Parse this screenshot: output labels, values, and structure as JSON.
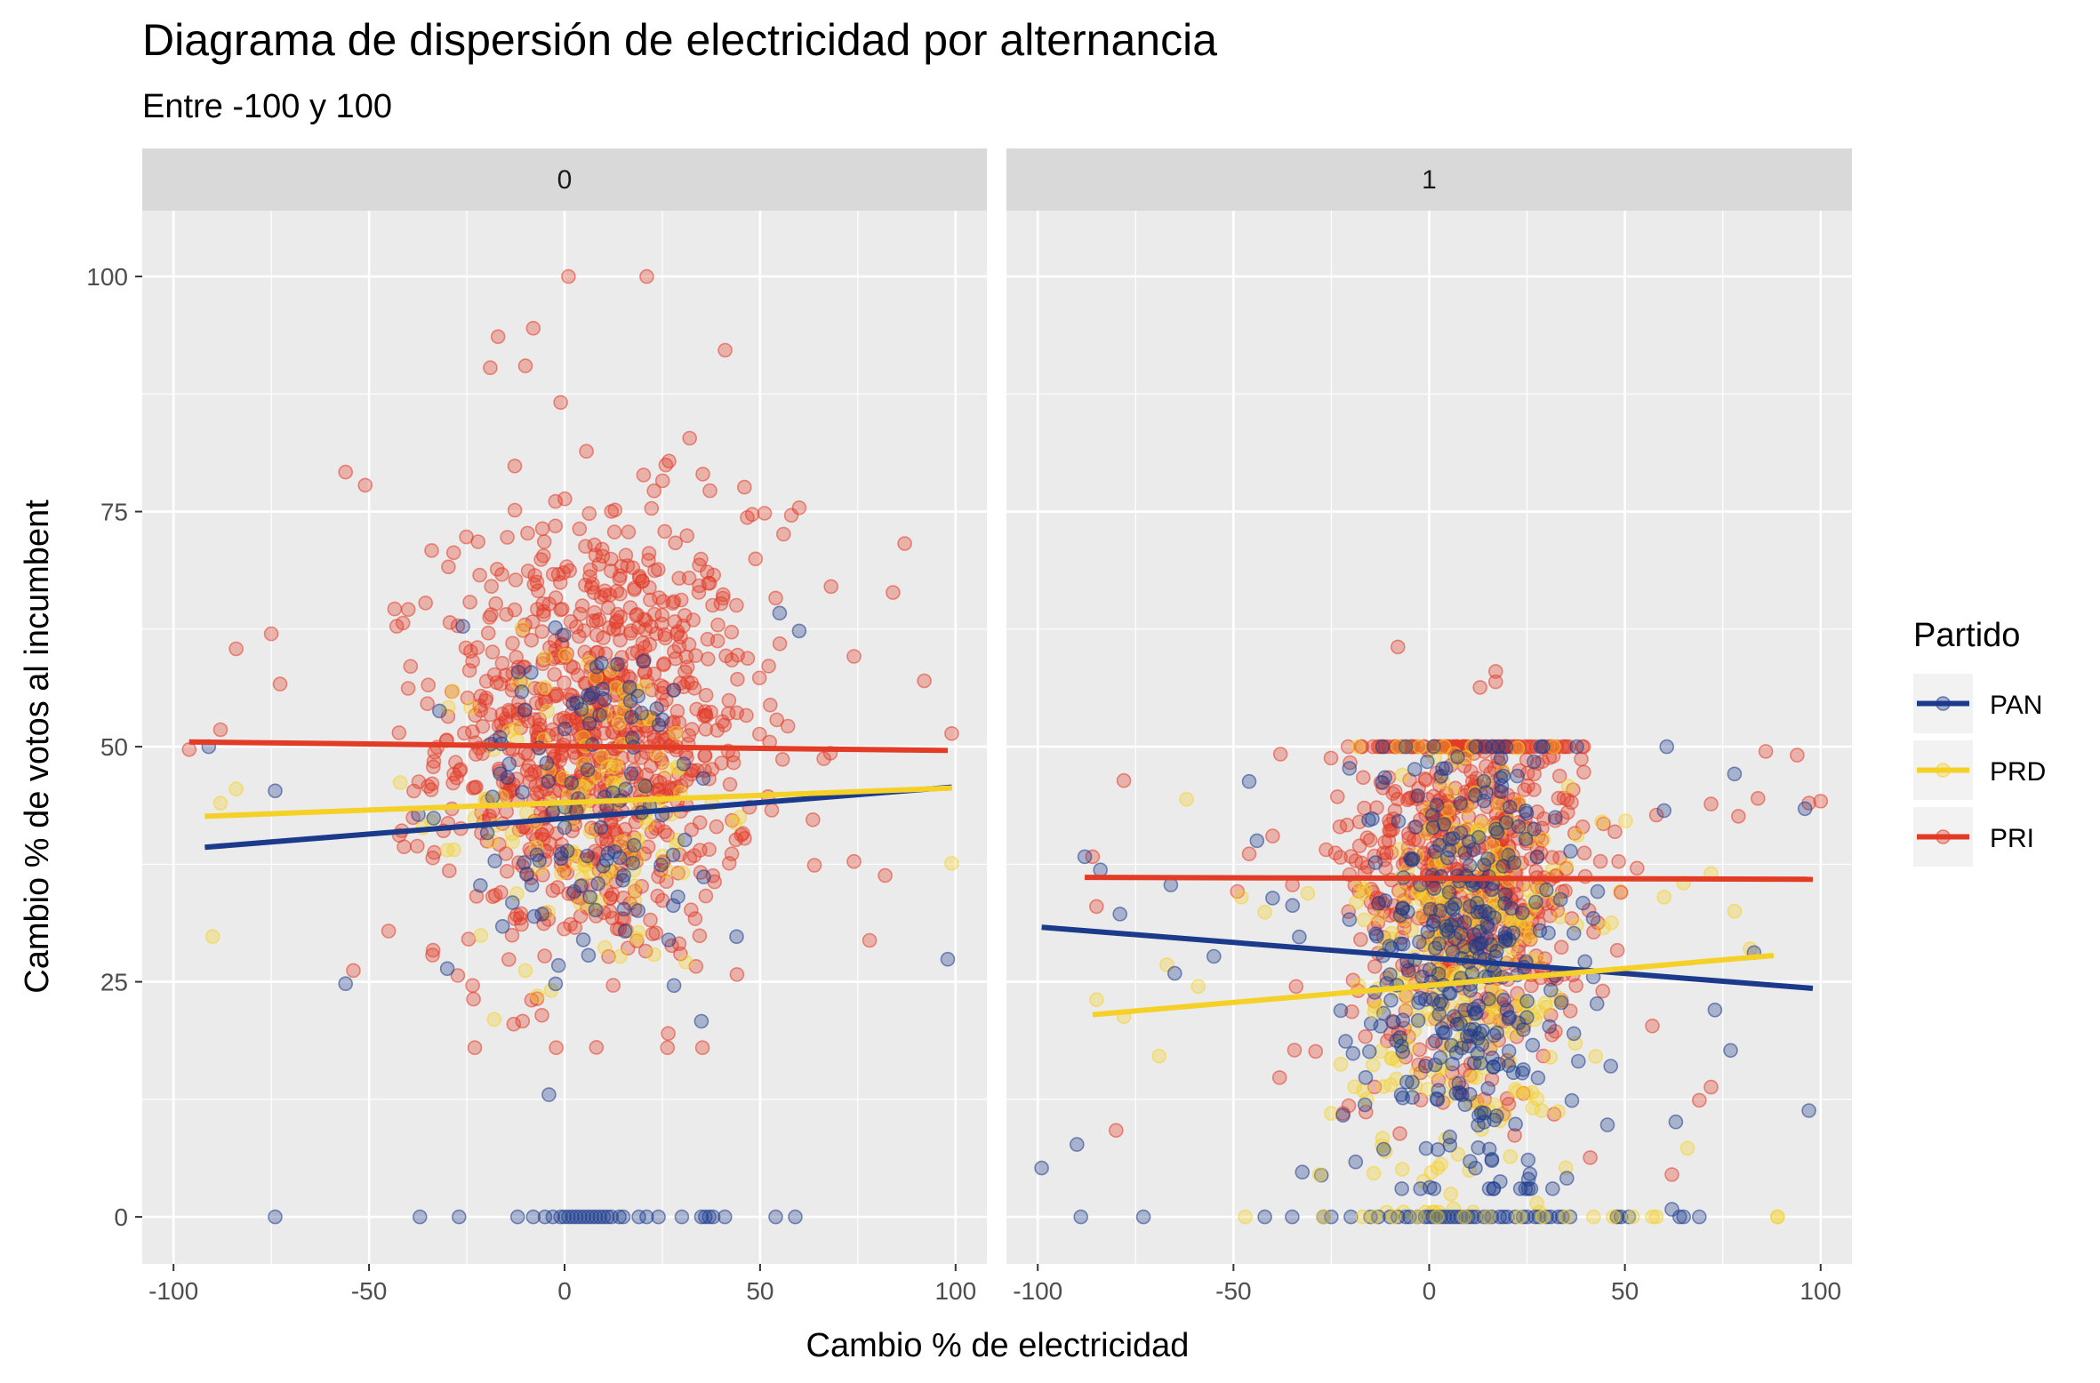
{
  "chart_data": {
    "type": "scatter",
    "title": "Diagrama de dispersión de electricidad por alternancia",
    "subtitle": "Entre -100 y 100",
    "xlabel": "Cambio % de electricidad",
    "ylabel": "Cambio % de votos al incumbent",
    "xlim": [
      -108,
      108
    ],
    "ylim": [
      -5,
      107
    ],
    "x_ticks": [
      -100,
      -50,
      0,
      50,
      100
    ],
    "x_tick_labels": [
      "-100",
      "-50",
      "0",
      "50",
      "100"
    ],
    "y_ticks": [
      0,
      25,
      50,
      75,
      100
    ],
    "y_tick_labels": [
      "0",
      "25",
      "50",
      "75",
      "100"
    ],
    "grid": true,
    "legend": {
      "title": "Partido",
      "position": "right",
      "entries": [
        {
          "name": "PAN",
          "color": "#1B3A8C"
        },
        {
          "name": "PRD",
          "color": "#F5D128"
        },
        {
          "name": "PRI",
          "color": "#E23B26"
        }
      ]
    },
    "colors": {
      "PAN": "#1B3A8C",
      "PRD": "#F5D128",
      "PRI": "#E23B26"
    },
    "facets": [
      {
        "label": "0",
        "trend_lines": [
          {
            "party": "PAN",
            "x": [
              -92,
              99
            ],
            "y": [
              39.3,
              45.7
            ]
          },
          {
            "party": "PRD",
            "x": [
              -92,
              99
            ],
            "y": [
              42.6,
              45.6
            ]
          },
          {
            "party": "PRI",
            "x": [
              -96,
              98
            ],
            "y": [
              50.5,
              49.6
            ]
          }
        ],
        "clouds": [
          {
            "party": "PRI",
            "n": 900,
            "cx": 8,
            "cy": 51,
            "sx": 20,
            "sy": 12,
            "ymin": 18,
            "ymax": 100,
            "xmin": -98,
            "xmax": 100
          },
          {
            "party": "PRD",
            "n": 130,
            "cx": 8,
            "cy": 44,
            "sx": 16,
            "sy": 9,
            "ymin": 20,
            "ymax": 72,
            "xmin": -95,
            "xmax": 100
          },
          {
            "party": "PAN",
            "n": 110,
            "cx": 8,
            "cy": 44,
            "sx": 17,
            "sy": 9,
            "ymin": 22,
            "ymax": 66,
            "xmin": -95,
            "xmax": 100
          }
        ],
        "points": [
          {
            "party": "PRI",
            "x": [
              1,
              21,
              -8,
              -17,
              -10,
              -19,
              -56,
              -51,
              -96,
              -75,
              -84,
              -88,
              87,
              84,
              82,
              92,
              99,
              78,
              74,
              74,
              60,
              58,
              -1,
              32,
              46,
              -45,
              -40,
              48,
              54,
              56,
              -54,
              -13
            ],
            "y": [
              100,
              100,
              94.5,
              93.6,
              90.5,
              90.3,
              79.2,
              77.8,
              49.7,
              62,
              60.4,
              51.8,
              71.6,
              66.4,
              36.3,
              57,
              51.4,
              29.4,
              37.8,
              59.6,
              75.4,
              74.6,
              86.6,
              82.8,
              77.6,
              30.4,
              56.2,
              74.7,
              65.8,
              72.6,
              26.2,
              20.5
            ]
          },
          {
            "party": "PRD",
            "x": [
              -90,
              -88,
              -84,
              99,
              -7,
              -18,
              -10,
              -30
            ],
            "y": [
              29.8,
              44,
              45.5,
              37.6,
              23.5,
              21,
              26.2,
              39
            ]
          },
          {
            "party": "PAN",
            "x": [
              -74,
              -56,
              -4,
              -30,
              -91,
              98,
              -26,
              -32,
              35,
              28,
              60,
              55,
              44
            ],
            "y": [
              45.3,
              24.8,
              13,
              26.4,
              50,
              27.4,
              62.8,
              53.8,
              20.8,
              24.6,
              62.3,
              64.2,
              29.8
            ]
          },
          {
            "party": "PAN",
            "x": [
              -74,
              -37,
              -27,
              -12,
              -8,
              -5,
              -3,
              -1,
              0,
              1,
              2,
              3,
              4,
              5,
              6,
              7,
              8,
              9,
              10,
              11,
              12,
              14,
              15,
              19,
              21,
              24,
              30,
              35,
              36,
              37,
              38,
              41,
              54,
              59
            ],
            "y": [
              0,
              0,
              0,
              0,
              0,
              0,
              0,
              0,
              0,
              0,
              0,
              0,
              0,
              0,
              0,
              0,
              0,
              0,
              0,
              0,
              0,
              0,
              0,
              0,
              0,
              0,
              0,
              0,
              0,
              0,
              0,
              0,
              0,
              0
            ]
          }
        ]
      },
      {
        "label": "1",
        "trend_lines": [
          {
            "party": "PAN",
            "x": [
              -99,
              98
            ],
            "y": [
              30.8,
              24.3
            ]
          },
          {
            "party": "PRD",
            "x": [
              -86,
              88
            ],
            "y": [
              21.5,
              27.8
            ]
          },
          {
            "party": "PRI",
            "x": [
              -88,
              98
            ],
            "y": [
              36.1,
              35.9
            ]
          }
        ],
        "clouds": [
          {
            "party": "PRI",
            "n": 700,
            "cx": 10,
            "cy": 38,
            "sx": 15,
            "sy": 11,
            "ymin": 5,
            "ymax": 50,
            "xmin": -90,
            "xmax": 100
          },
          {
            "party": "PRD",
            "n": 300,
            "cx": 10,
            "cy": 27,
            "sx": 14,
            "sy": 13,
            "ymin": 0.5,
            "ymax": 50,
            "xmin": -95,
            "xmax": 100
          },
          {
            "party": "PAN",
            "n": 340,
            "cx": 10,
            "cy": 27,
            "sx": 14,
            "sy": 13,
            "ymin": 3,
            "ymax": 50,
            "xmin": -95,
            "xmax": 100
          }
        ],
        "points": [
          {
            "party": "PRI",
            "x": [
              -8,
              17,
              17,
              13,
              -80,
              -86,
              -85,
              -78,
              -49,
              -38,
              -46,
              -40,
              -34,
              -29,
              -22,
              79,
              72,
              84,
              86,
              94,
              97,
              100,
              72,
              62,
              69,
              57,
              49
            ],
            "y": [
              60.6,
              58,
              56.9,
              56.3,
              9.2,
              38.3,
              33,
              46.4,
              34.6,
              49.2,
              38.6,
              40.5,
              24.5,
              17.6,
              11,
              42.6,
              13.8,
              44.5,
              49.5,
              49.1,
              44,
              44.2,
              43.9,
              4.5,
              12.4,
              20.3,
              34.5
            ]
          },
          {
            "party": "PRD",
            "x": [
              -85,
              -78,
              -69,
              -59,
              -48,
              -42,
              -31,
              -28,
              -25,
              -18,
              -14,
              48,
              57,
              66,
              82,
              89,
              78,
              60,
              65,
              72,
              -62,
              -67
            ],
            "y": [
              23.1,
              21.3,
              17.1,
              24.5,
              34,
              32.4,
              34.4,
              4.5,
              11,
              24.6,
              21.8,
              0,
              0,
              7.3,
              28.5,
              0,
              32.5,
              34,
              35.5,
              36.5,
              44.4,
              26.8
            ]
          },
          {
            "party": "PAN",
            "x": [
              -99,
              -90,
              -88,
              -84,
              -79,
              -66,
              -65,
              -55,
              -46,
              -44,
              -40,
              -22,
              83,
              97,
              96,
              78,
              77,
              73,
              63,
              62,
              60
            ],
            "y": [
              5.2,
              7.7,
              38.3,
              36.9,
              32.2,
              35.3,
              25.9,
              27.7,
              46.3,
              40,
              33.9,
              10.8,
              28.1,
              11.3,
              43.4,
              47.1,
              17.7,
              22,
              10.1,
              0.8,
              43.2
            ]
          },
          {
            "party": "PAN",
            "x": [
              -89,
              -73,
              -42,
              -35,
              -27,
              -25,
              -20,
              -15,
              -13,
              -10,
              -8,
              -6,
              -5,
              -3,
              -1,
              0,
              1,
              2,
              3,
              4,
              5,
              6,
              7,
              8,
              9,
              10,
              11,
              12,
              14,
              15,
              16,
              18,
              19,
              20,
              22,
              24,
              25,
              27,
              28,
              30,
              31,
              33,
              34,
              36,
              48,
              49,
              51,
              64,
              65,
              69
            ],
            "y": [
              0,
              0,
              0,
              0,
              0,
              0,
              0,
              0,
              0,
              0,
              0,
              0,
              0,
              0,
              0,
              0,
              0,
              0,
              0,
              0,
              0,
              0,
              0,
              0,
              0,
              0,
              0,
              0,
              0,
              0,
              0,
              0,
              0,
              0,
              0,
              0,
              0,
              0,
              0,
              0,
              0,
              0,
              0,
              0,
              0,
              0,
              0,
              0,
              0,
              0
            ]
          },
          {
            "party": "PRD",
            "x": [
              -47,
              -27,
              -17,
              -14,
              -9,
              -3,
              2,
              9,
              15,
              23,
              29,
              35,
              42,
              47,
              52,
              58,
              89
            ],
            "y": [
              0,
              0,
              0,
              0,
              0,
              0,
              0,
              0,
              0,
              0,
              0,
              0,
              0,
              0,
              0,
              0,
              0
            ]
          }
        ]
      }
    ]
  }
}
